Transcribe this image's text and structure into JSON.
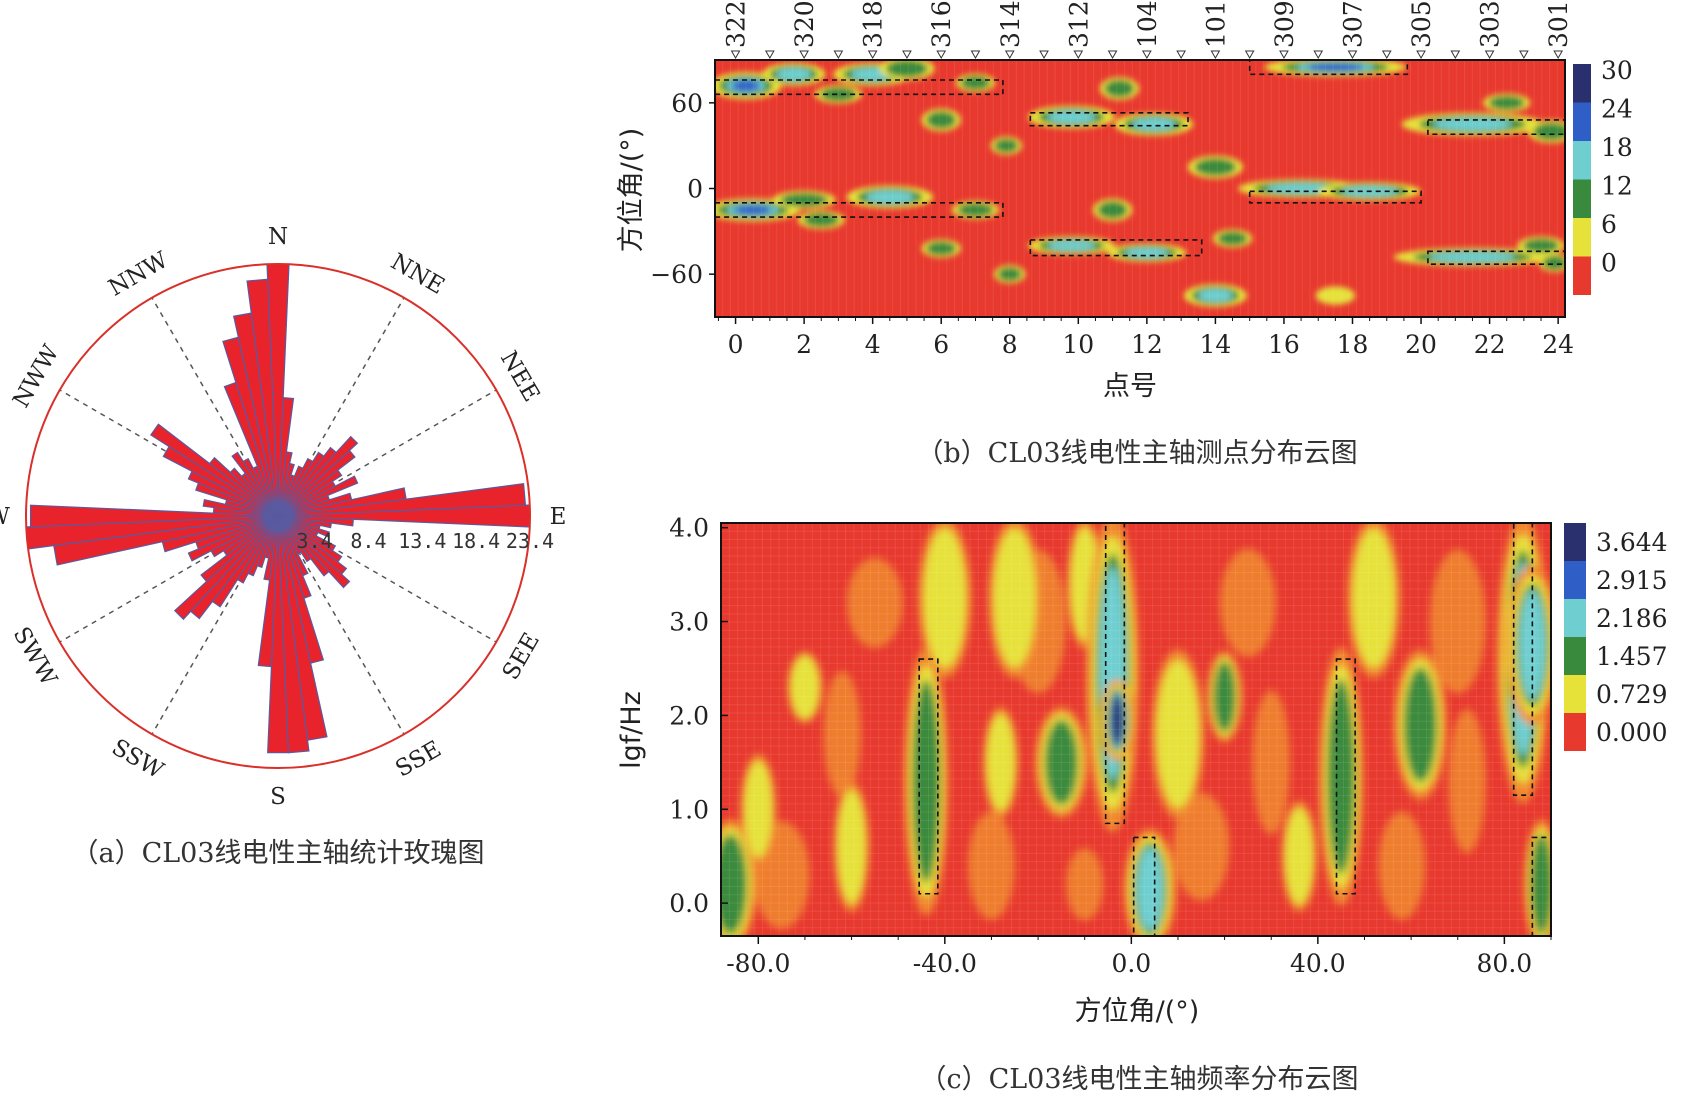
{
  "colors": {
    "background": "#e8392f",
    "yellow": "#e6e23a",
    "green": "#3a8a3e",
    "cyan": "#6fcfd0",
    "blue": "#2f5fc6",
    "navy": "#2a2f6e",
    "orange": "#f08a2e",
    "petal": "#e8232b",
    "petal_edge": "#5a5aa0",
    "circle": "#d9302a"
  },
  "chart_data": [
    {
      "type": "rose",
      "caption": "（a）CL03线电性主轴统计玫瑰图",
      "directions": [
        "N",
        "NNE",
        "NEE",
        "E",
        "SEE",
        "SSE",
        "S",
        "SSW",
        "SWW",
        "W",
        "NWW",
        "NNW"
      ],
      "radial_ticks": [
        "3.4",
        "8.4",
        "13.4",
        "18.4",
        "23.4"
      ],
      "rmax": 23.4,
      "sectors": [
        {
          "angle": 0,
          "value": 23.4
        },
        {
          "angle": 5,
          "value": 11
        },
        {
          "angle": 10,
          "value": 6
        },
        {
          "angle": 15,
          "value": 5
        },
        {
          "angle": 20,
          "value": 4
        },
        {
          "angle": 25,
          "value": 5
        },
        {
          "angle": 30,
          "value": 6
        },
        {
          "angle": 35,
          "value": 7
        },
        {
          "angle": 40,
          "value": 8
        },
        {
          "angle": 45,
          "value": 10
        },
        {
          "angle": 50,
          "value": 9
        },
        {
          "angle": 55,
          "value": 7
        },
        {
          "angle": 60,
          "value": 6
        },
        {
          "angle": 65,
          "value": 8
        },
        {
          "angle": 70,
          "value": 5
        },
        {
          "angle": 75,
          "value": 7
        },
        {
          "angle": 80,
          "value": 12
        },
        {
          "angle": 85,
          "value": 23
        },
        {
          "angle": 90,
          "value": 23.4
        },
        {
          "angle": 95,
          "value": 7
        },
        {
          "angle": 100,
          "value": 5
        },
        {
          "angle": 105,
          "value": 4
        },
        {
          "angle": 110,
          "value": 5
        },
        {
          "angle": 115,
          "value": 4
        },
        {
          "angle": 120,
          "value": 6
        },
        {
          "angle": 125,
          "value": 7
        },
        {
          "angle": 130,
          "value": 8
        },
        {
          "angle": 135,
          "value": 9
        },
        {
          "angle": 140,
          "value": 7
        },
        {
          "angle": 145,
          "value": 5
        },
        {
          "angle": 150,
          "value": 4
        },
        {
          "angle": 155,
          "value": 6
        },
        {
          "angle": 160,
          "value": 8
        },
        {
          "angle": 165,
          "value": 14
        },
        {
          "angle": 170,
          "value": 21
        },
        {
          "angle": 175,
          "value": 22
        },
        {
          "angle": 180,
          "value": 22
        },
        {
          "angle": 185,
          "value": 14
        },
        {
          "angle": 190,
          "value": 6
        },
        {
          "angle": 195,
          "value": 4
        },
        {
          "angle": 200,
          "value": 5
        },
        {
          "angle": 205,
          "value": 6
        },
        {
          "angle": 210,
          "value": 7
        },
        {
          "angle": 215,
          "value": 10
        },
        {
          "angle": 220,
          "value": 12
        },
        {
          "angle": 225,
          "value": 13
        },
        {
          "angle": 230,
          "value": 9
        },
        {
          "angle": 235,
          "value": 6
        },
        {
          "angle": 240,
          "value": 7
        },
        {
          "angle": 245,
          "value": 9
        },
        {
          "angle": 250,
          "value": 8
        },
        {
          "angle": 255,
          "value": 11
        },
        {
          "angle": 260,
          "value": 21
        },
        {
          "angle": 265,
          "value": 23.4
        },
        {
          "angle": 270,
          "value": 23
        },
        {
          "angle": 275,
          "value": 6
        },
        {
          "angle": 280,
          "value": 7
        },
        {
          "angle": 285,
          "value": 5
        },
        {
          "angle": 290,
          "value": 8
        },
        {
          "angle": 295,
          "value": 9
        },
        {
          "angle": 300,
          "value": 12
        },
        {
          "angle": 305,
          "value": 14
        },
        {
          "angle": 310,
          "value": 8
        },
        {
          "angle": 315,
          "value": 6
        },
        {
          "angle": 320,
          "value": 5
        },
        {
          "angle": 325,
          "value": 7
        },
        {
          "angle": 330,
          "value": 6
        },
        {
          "angle": 335,
          "value": 5
        },
        {
          "angle": 340,
          "value": 13
        },
        {
          "angle": 345,
          "value": 17
        },
        {
          "angle": 350,
          "value": 19
        },
        {
          "angle": 355,
          "value": 22
        }
      ]
    },
    {
      "type": "heatmap",
      "caption": "（b）CL03线电性主轴测点分布云图",
      "xlabel": "点号",
      "ylabel": "方位角/(°)",
      "xlim": [
        -0.6,
        24.2
      ],
      "ylim": [
        -90,
        90
      ],
      "x_ticks": [
        "0",
        "2",
        "4",
        "6",
        "8",
        "10",
        "12",
        "14",
        "16",
        "18",
        "20",
        "22",
        "24"
      ],
      "y_ticks": [
        "60",
        "0",
        "−60"
      ],
      "top_labels": [
        {
          "label": "322",
          "x": 0
        },
        {
          "label": "320",
          "x": 2
        },
        {
          "label": "318",
          "x": 4
        },
        {
          "label": "316",
          "x": 6
        },
        {
          "label": "314",
          "x": 8
        },
        {
          "label": "312",
          "x": 10
        },
        {
          "label": "104",
          "x": 12
        },
        {
          "label": "101",
          "x": 14
        },
        {
          "label": "309",
          "x": 16
        },
        {
          "label": "307",
          "x": 18
        },
        {
          "label": "305",
          "x": 20
        },
        {
          "label": "303",
          "x": 22
        },
        {
          "label": "301",
          "x": 24
        }
      ],
      "top_markers": [
        0,
        1,
        2,
        3,
        4,
        5,
        6,
        7,
        8,
        9,
        10,
        11,
        12,
        13,
        14,
        15,
        16,
        17,
        18,
        19,
        20,
        21,
        22,
        23,
        24
      ],
      "colorbar": {
        "ticks": [
          "30",
          "24",
          "18",
          "12",
          "6",
          "0"
        ]
      },
      "blobs": [
        {
          "x": 0.3,
          "y": 72,
          "rx": 0.9,
          "ry": 6,
          "v": 25
        },
        {
          "x": 1.7,
          "y": 80,
          "rx": 0.8,
          "ry": 5,
          "v": 16
        },
        {
          "x": 4.0,
          "y": 80,
          "rx": 1.0,
          "ry": 5,
          "v": 16
        },
        {
          "x": 3.0,
          "y": 66,
          "rx": 0.6,
          "ry": 4,
          "v": 12
        },
        {
          "x": 5.0,
          "y": 84,
          "rx": 0.7,
          "ry": 5,
          "v": 14
        },
        {
          "x": 7.0,
          "y": 74,
          "rx": 0.5,
          "ry": 4,
          "v": 12
        },
        {
          "x": 6.0,
          "y": 48,
          "rx": 0.5,
          "ry": 5,
          "v": 12
        },
        {
          "x": 7.9,
          "y": 30,
          "rx": 0.4,
          "ry": 4,
          "v": 10
        },
        {
          "x": 11.2,
          "y": 70,
          "rx": 0.5,
          "ry": 5,
          "v": 12
        },
        {
          "x": 9.8,
          "y": 50,
          "rx": 1.1,
          "ry": 5,
          "v": 20
        },
        {
          "x": 12.2,
          "y": 45,
          "rx": 1.0,
          "ry": 5,
          "v": 18
        },
        {
          "x": 14.0,
          "y": 15,
          "rx": 0.7,
          "ry": 5,
          "v": 14
        },
        {
          "x": 17.5,
          "y": 85,
          "rx": 1.8,
          "ry": 4,
          "v": 24
        },
        {
          "x": 16.5,
          "y": 0,
          "rx": 1.6,
          "ry": 4,
          "v": 18
        },
        {
          "x": 18.5,
          "y": -2,
          "rx": 1.3,
          "ry": 4,
          "v": 16
        },
        {
          "x": 21.5,
          "y": 45,
          "rx": 1.8,
          "ry": 5,
          "v": 16
        },
        {
          "x": 22.5,
          "y": 60,
          "rx": 0.6,
          "ry": 4,
          "v": 10
        },
        {
          "x": 23.8,
          "y": 40,
          "rx": 0.6,
          "ry": 5,
          "v": 14
        },
        {
          "x": 0.5,
          "y": -15,
          "rx": 1.2,
          "ry": 5,
          "v": 22
        },
        {
          "x": 2.0,
          "y": -8,
          "rx": 0.8,
          "ry": 4,
          "v": 14
        },
        {
          "x": 2.5,
          "y": -22,
          "rx": 0.6,
          "ry": 4,
          "v": 12
        },
        {
          "x": 4.5,
          "y": -6,
          "rx": 1.1,
          "ry": 5,
          "v": 16
        },
        {
          "x": 7.0,
          "y": -15,
          "rx": 0.6,
          "ry": 4,
          "v": 12
        },
        {
          "x": 11.0,
          "y": -15,
          "rx": 0.5,
          "ry": 5,
          "v": 12
        },
        {
          "x": 6.0,
          "y": -42,
          "rx": 0.5,
          "ry": 4,
          "v": 14
        },
        {
          "x": 9.8,
          "y": -40,
          "rx": 1.1,
          "ry": 4,
          "v": 18
        },
        {
          "x": 12.0,
          "y": -45,
          "rx": 1.0,
          "ry": 4,
          "v": 16
        },
        {
          "x": 14.5,
          "y": -35,
          "rx": 0.5,
          "ry": 4,
          "v": 10
        },
        {
          "x": 8.0,
          "y": -60,
          "rx": 0.4,
          "ry": 4,
          "v": 10
        },
        {
          "x": 14.0,
          "y": -75,
          "rx": 0.8,
          "ry": 5,
          "v": 16
        },
        {
          "x": 17.5,
          "y": -75,
          "rx": 0.5,
          "ry": 4,
          "v": 8
        },
        {
          "x": 21.5,
          "y": -48,
          "rx": 2.0,
          "ry": 4,
          "v": 16
        },
        {
          "x": 23.5,
          "y": -40,
          "rx": 0.6,
          "ry": 4,
          "v": 10
        },
        {
          "x": 23.9,
          "y": -52,
          "rx": 0.4,
          "ry": 4,
          "v": 12
        }
      ],
      "boxes": [
        {
          "x1": -0.6,
          "x2": 7.8,
          "y1": 66,
          "y2": 76
        },
        {
          "x1": 8.6,
          "x2": 13.2,
          "y1": 44,
          "y2": 53
        },
        {
          "x1": 15.0,
          "x2": 19.6,
          "y1": 80,
          "y2": 90
        },
        {
          "x1": 15.0,
          "x2": 20.0,
          "y1": -10,
          "y2": -2
        },
        {
          "x1": 20.2,
          "x2": 24.2,
          "y1": 38,
          "y2": 48
        },
        {
          "x1": -0.6,
          "x2": 7.8,
          "y1": -20,
          "y2": -10
        },
        {
          "x1": 8.6,
          "x2": 13.6,
          "y1": -47,
          "y2": -36
        },
        {
          "x1": 20.2,
          "x2": 24.2,
          "y1": -53,
          "y2": -44
        }
      ]
    },
    {
      "type": "heatmap",
      "caption": "（c）CL03线电性主轴频率分布云图",
      "xlabel": "方位角/(°)",
      "ylabel": "lgf/Hz",
      "xlim": [
        -88,
        90
      ],
      "ylim": [
        -0.35,
        4.05
      ],
      "x_ticks": [
        "-80.0",
        "-40.0",
        "0.0",
        "40.0",
        "80.0"
      ],
      "y_ticks": [
        "4.0",
        "3.0",
        "2.0",
        "1.0",
        "0.0"
      ],
      "colorbar": {
        "ticks": [
          "3.644",
          "2.915",
          "2.186",
          "1.457",
          "0.729",
          "0.000"
        ]
      },
      "ridges": [
        {
          "x": -86,
          "y1": -0.4,
          "y2": 0.8,
          "w": 3,
          "v": 1.8
        },
        {
          "x": -80,
          "y1": 0.5,
          "y2": 1.5,
          "w": 2,
          "v": 0.8
        },
        {
          "x": -70,
          "y1": 2.0,
          "y2": 2.6,
          "w": 2,
          "v": 1.0
        },
        {
          "x": -60,
          "y1": 0.0,
          "y2": 1.2,
          "w": 2,
          "v": 0.8
        },
        {
          "x": -44,
          "y1": 0.0,
          "y2": 2.6,
          "w": 2.5,
          "v": 1.6
        },
        {
          "x": -40,
          "y1": 2.5,
          "y2": 4.0,
          "w": 3,
          "v": 0.9
        },
        {
          "x": -28,
          "y1": 1.0,
          "y2": 2.0,
          "w": 2,
          "v": 0.8
        },
        {
          "x": -25,
          "y1": 2.5,
          "y2": 4.0,
          "w": 3,
          "v": 0.9
        },
        {
          "x": -15,
          "y1": 1.0,
          "y2": 2.0,
          "w": 3,
          "v": 1.3
        },
        {
          "x": -10,
          "y1": 2.8,
          "y2": 4.0,
          "w": 2,
          "v": 1.1
        },
        {
          "x": -4,
          "y1": 0.9,
          "y2": 4.0,
          "w": 3,
          "v": 2.2
        },
        {
          "x": -3,
          "y1": 1.6,
          "y2": 2.3,
          "w": 2,
          "v": 3.3
        },
        {
          "x": 4,
          "y1": -0.4,
          "y2": 0.7,
          "w": 3,
          "v": 2.0
        },
        {
          "x": 10,
          "y1": 1.0,
          "y2": 2.6,
          "w": 3,
          "v": 1.1
        },
        {
          "x": 20,
          "y1": 1.8,
          "y2": 2.6,
          "w": 2,
          "v": 1.4
        },
        {
          "x": 36,
          "y1": 0.0,
          "y2": 1.0,
          "w": 2,
          "v": 0.9
        },
        {
          "x": 45,
          "y1": 0.1,
          "y2": 2.6,
          "w": 2.5,
          "v": 1.7
        },
        {
          "x": 52,
          "y1": 2.5,
          "y2": 4.0,
          "w": 3,
          "v": 1.0
        },
        {
          "x": 62,
          "y1": 1.2,
          "y2": 2.6,
          "w": 3,
          "v": 1.2
        },
        {
          "x": 84,
          "y1": 1.2,
          "y2": 4.0,
          "w": 3,
          "v": 2.0
        },
        {
          "x": 86,
          "y1": 2.0,
          "y2": 3.5,
          "w": 3,
          "v": 2.1
        },
        {
          "x": 88,
          "y1": -0.4,
          "y2": 0.8,
          "w": 2,
          "v": 1.8
        }
      ],
      "boxes": [
        {
          "x1": -45.5,
          "x2": -41.5,
          "y1": 0.1,
          "y2": 2.6
        },
        {
          "x1": -5.5,
          "x2": -1.5,
          "y1": 0.85,
          "y2": 4.05
        },
        {
          "x1": 0.5,
          "x2": 5.0,
          "y1": -0.35,
          "y2": 0.7
        },
        {
          "x1": 44.0,
          "x2": 48.0,
          "y1": 0.1,
          "y2": 2.6
        },
        {
          "x1": 82.0,
          "x2": 86.0,
          "y1": 1.15,
          "y2": 4.05
        },
        {
          "x1": 86.0,
          "x2": 90.0,
          "y1": -0.35,
          "y2": 0.7
        }
      ]
    }
  ]
}
